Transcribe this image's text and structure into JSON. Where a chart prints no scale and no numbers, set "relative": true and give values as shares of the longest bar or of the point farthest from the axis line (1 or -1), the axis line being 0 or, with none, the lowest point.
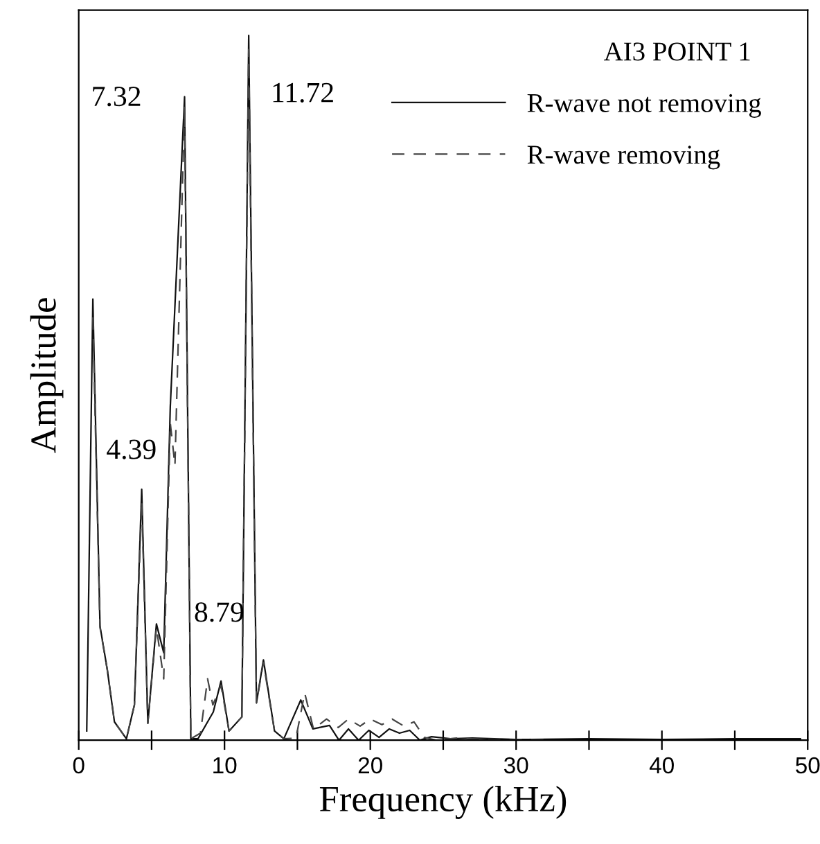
{
  "chart_data": {
    "type": "line",
    "relative": true,
    "xlabel": "Frequency (kHz)",
    "ylabel": "Amplitude",
    "legend_title": "AI3 POINT 1",
    "legend": "top right",
    "grid": false,
    "marker": "none",
    "xlim": [
      0,
      50
    ],
    "xticks": [
      0,
      {
        "value": 5,
        "label": null
      },
      10,
      {
        "value": 15,
        "label": null
      },
      20,
      {
        "value": 25,
        "label": null
      },
      30,
      {
        "value": 35,
        "label": null
      },
      40,
      {
        "value": 45,
        "label": null
      },
      50
    ],
    "annotations": [
      {
        "text": "7.32",
        "x": 7.32,
        "y": 0.91
      },
      {
        "text": "11.72",
        "x": 11.72,
        "y": 1.0
      },
      {
        "text": "4.39",
        "x": 4.39,
        "y": 0.36
      },
      "8.79"
    ],
    "series": [
      {
        "name": "R-wave not removing",
        "color": "#111111",
        "line_style": "solid",
        "x": [
          0.55,
          0.97,
          1.46,
          1.96,
          2.45,
          3.27,
          3.82,
          4.32,
          4.74,
          5.33,
          5.83,
          6.28,
          7.26,
          7.69,
          8.18,
          8.84,
          9.23,
          9.76,
          10.31,
          11.19,
          11.66,
          12.19,
          12.67,
          13.43,
          14.07,
          15.23,
          16.06,
          17.2,
          17.85,
          18.5,
          19.2,
          19.9,
          20.6,
          21.3,
          22.0,
          22.7,
          23.4,
          24.2,
          25.5,
          27,
          30,
          35,
          40,
          45,
          49.5
        ],
        "values": [
          0.013,
          0.626,
          0.162,
          0.1,
          0.026,
          0.002,
          0.05,
          0.356,
          0.024,
          0.165,
          0.124,
          0.473,
          0.913,
          0.002,
          0.002,
          0.026,
          0.04,
          0.084,
          0.013,
          0.033,
          1.0,
          0.053,
          0.114,
          0.013,
          0.002,
          0.057,
          0.016,
          0.021,
          0.0,
          0.016,
          0.0,
          0.014,
          0.004,
          0.016,
          0.01,
          0.014,
          0.0,
          0.005,
          0.002,
          0.003,
          0.001,
          0.002,
          0.001,
          0.002,
          0.002
        ]
      },
      {
        "name": "R-wave removing",
        "color": "#444444",
        "line_style": "dashed",
        "x": [
          0.97,
          1.46,
          1.96,
          2.45,
          3.27,
          3.82,
          4.32,
          4.74,
          5.33,
          5.83,
          6.28,
          6.6,
          7.26,
          7.69,
          8.35,
          8.84,
          9.2,
          9.76,
          10.31,
          11.19,
          11.66,
          12.19,
          12.67,
          13.43,
          14.07,
          14.9,
          15.5,
          16.1,
          17.0,
          17.8,
          18.5,
          19.3,
          20.0,
          20.8,
          21.5,
          22.3,
          23.0,
          23.7,
          24.5,
          26,
          28,
          32
        ],
        "values": [
          0.6,
          0.16,
          0.1,
          0.026,
          0.002,
          0.05,
          0.34,
          0.024,
          0.16,
          0.087,
          0.45,
          0.39,
          0.9,
          0.002,
          0.01,
          0.087,
          0.05,
          0.078,
          0.013,
          0.033,
          0.98,
          0.053,
          0.11,
          0.013,
          0.002,
          0.003,
          0.067,
          0.016,
          0.03,
          0.018,
          0.03,
          0.02,
          0.03,
          0.022,
          0.03,
          0.02,
          0.026,
          0.004,
          0.0,
          0.003,
          0.001,
          0.001
        ]
      }
    ]
  }
}
